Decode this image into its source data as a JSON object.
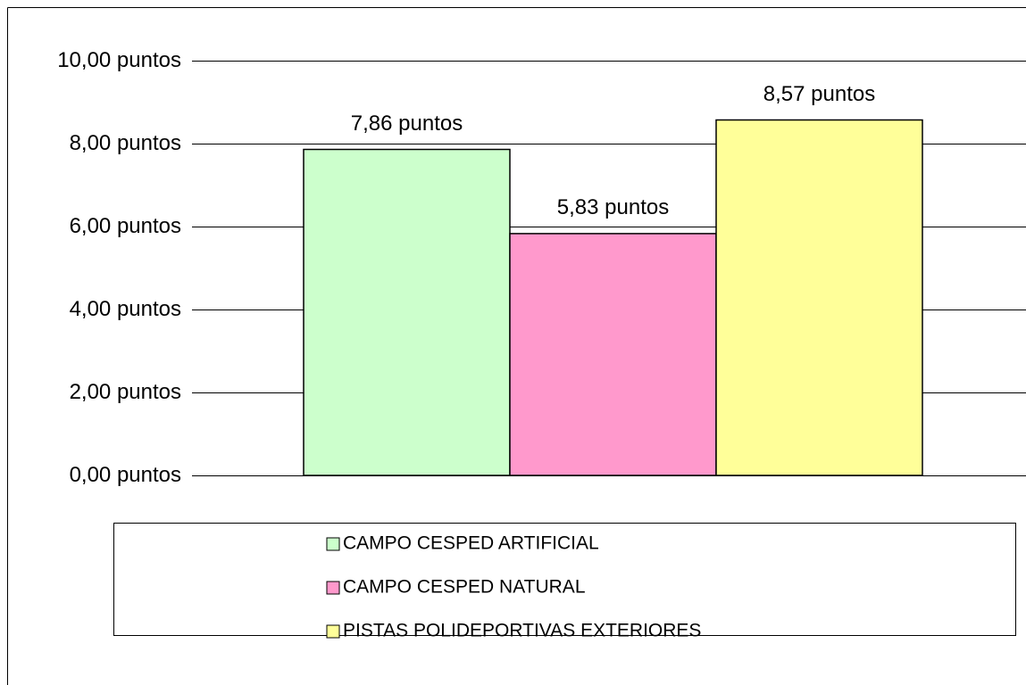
{
  "chart_data": {
    "type": "bar",
    "series": [
      {
        "name": "CAMPO CESPED ARTIFICIAL",
        "color": "#ccffcc",
        "values": [
          7.86
        ],
        "value_labels": [
          "7,86 puntos"
        ]
      },
      {
        "name": "CAMPO CESPED NATURAL",
        "color": "#ff99cc",
        "values": [
          5.83
        ],
        "value_labels": [
          "5,83 puntos"
        ]
      },
      {
        "name": "PISTAS POLIDEPORTIVAS EXTERIORES",
        "color": "#ffff99",
        "values": [
          8.57
        ],
        "value_labels": [
          "8,57 puntos"
        ]
      }
    ],
    "ylim": [
      0,
      10
    ],
    "yticks": [
      {
        "value": 0,
        "label": "0,00 puntos"
      },
      {
        "value": 2,
        "label": "2,00 puntos"
      },
      {
        "value": 4,
        "label": "4,00 puntos"
      },
      {
        "value": 6,
        "label": "6,00 puntos"
      },
      {
        "value": 8,
        "label": "8,00 puntos"
      },
      {
        "value": 10,
        "label": "10,00 puntos"
      }
    ],
    "grid": true,
    "legend": "bottom"
  }
}
